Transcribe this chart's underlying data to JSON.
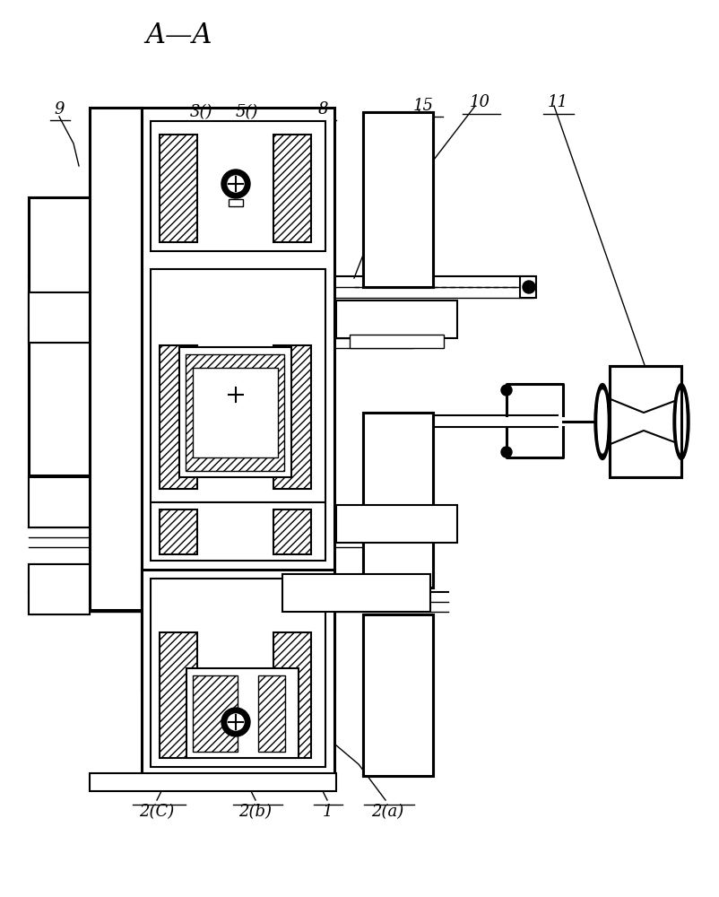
{
  "bg_color": "#ffffff",
  "title": "A—A",
  "lw_thin": 1.0,
  "lw_med": 1.5,
  "lw_thick": 2.2
}
